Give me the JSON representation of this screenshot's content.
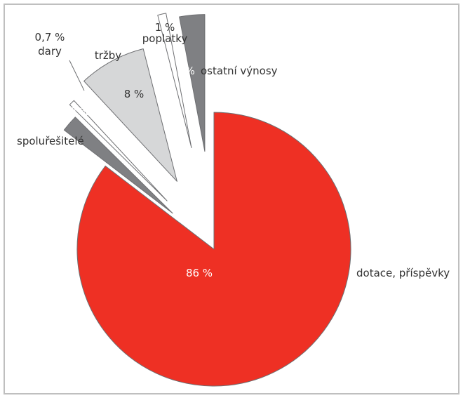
{
  "chart_data": {
    "type": "pie",
    "title": "",
    "slices": [
      {
        "label": "dotace, příspěvky",
        "value": 86,
        "value_label": "86 %",
        "color": "#EE3024",
        "label_color": "#ffffff"
      },
      {
        "label": "spoluřešitelé",
        "value": 2,
        "value_label": "2 %",
        "color": "#7F8083",
        "label_color": "#ffffff"
      },
      {
        "label": "dary",
        "value": 0.7,
        "value_label": "0,7 %",
        "color": "#ffffff",
        "label_color": "#333333"
      },
      {
        "label": "tržby",
        "value": 8,
        "value_label": "8 %",
        "color": "#D6D7D8",
        "label_color": "#333333"
      },
      {
        "label": "poplatky",
        "value": 1,
        "value_label": "1 %",
        "color": "#ffffff",
        "label_color": "#333333"
      },
      {
        "label": "ostatní výnosy",
        "value": 3,
        "value_label": "3%",
        "color": "#7F8083",
        "label_color": "#ffffff"
      }
    ],
    "colors": {
      "border": "#bfbfbf",
      "stroke": "#6e6f72",
      "text": "#333333"
    },
    "legend": "none"
  }
}
